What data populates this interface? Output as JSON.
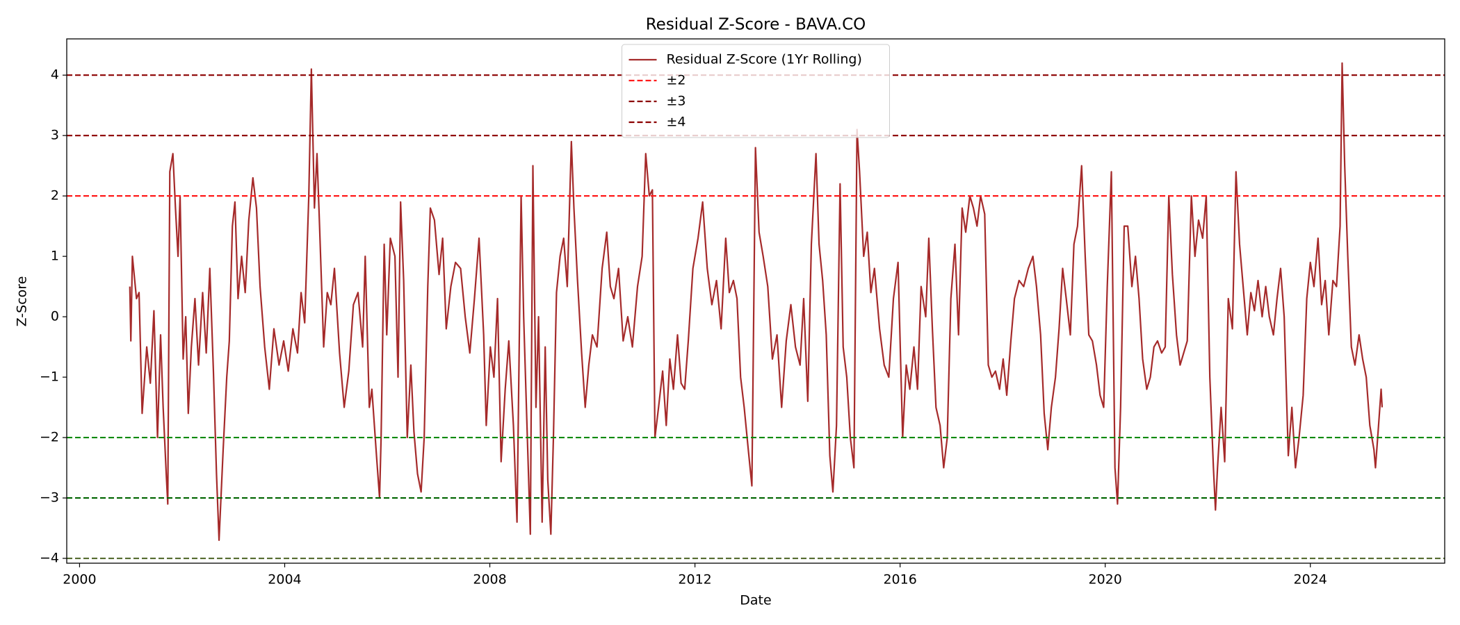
{
  "chart_data": {
    "type": "line",
    "title": "Residual Z-Score - BAVA.CO",
    "xlabel": "Date",
    "ylabel": "Z-Score",
    "xlim": [
      1999.75,
      2026.62
    ],
    "ylim": [
      -4.08,
      4.6
    ],
    "xticks": [
      2000,
      2004,
      2008,
      2012,
      2016,
      2020,
      2024
    ],
    "yticks": [
      {
        "value": -4,
        "label": "−4"
      },
      {
        "value": -3,
        "label": "−3"
      },
      {
        "value": -2,
        "label": "−2"
      },
      {
        "value": -1,
        "label": "−1"
      },
      0,
      1,
      2,
      3,
      4
    ],
    "legend_loc": "upper center",
    "grid": false,
    "reference_lines": [
      {
        "name": "±2",
        "levels": [
          2,
          -2
        ],
        "colors": [
          "#ff1a1a",
          "#0a8a0a"
        ]
      },
      {
        "name": "±3",
        "levels": [
          3,
          -3
        ],
        "colors": [
          "#8b0000",
          "#006400"
        ]
      },
      {
        "name": "±4",
        "levels": [
          4,
          -4
        ],
        "colors": [
          "#8b0000",
          "#556b2f"
        ]
      }
    ],
    "x": [
      2000.98,
      2001.0,
      2001.03,
      2001.11,
      2001.16,
      2001.22,
      2001.31,
      2001.38,
      2001.45,
      2001.52,
      2001.58,
      2001.63,
      2001.69,
      2001.72,
      2001.76,
      2001.82,
      2001.87,
      2001.92,
      2001.96,
      2002.02,
      2002.07,
      2002.12,
      2002.18,
      2002.25,
      2002.32,
      2002.4,
      2002.47,
      2002.54,
      2002.61,
      2002.67,
      2002.72,
      2002.8,
      2002.87,
      2002.92,
      2002.98,
      2003.03,
      2003.09,
      2003.16,
      2003.23,
      2003.3,
      2003.38,
      2003.45,
      2003.52,
      2003.61,
      2003.7,
      2003.79,
      2003.89,
      2003.98,
      2004.07,
      2004.16,
      2004.25,
      2004.32,
      2004.39,
      2004.47,
      2004.52,
      2004.58,
      2004.63,
      2004.68,
      2004.76,
      2004.83,
      2004.9,
      2004.97,
      2005.07,
      2005.16,
      2005.25,
      2005.34,
      2005.43,
      2005.52,
      2005.57,
      2005.65,
      2005.7,
      2005.79,
      2005.85,
      2005.88,
      2005.94,
      2005.99,
      2006.06,
      2006.15,
      2006.21,
      2006.26,
      2006.32,
      2006.39,
      2006.46,
      2006.52,
      2006.59,
      2006.66,
      2006.72,
      2006.79,
      2006.84,
      2006.92,
      2007.01,
      2007.08,
      2007.15,
      2007.24,
      2007.33,
      2007.43,
      2007.52,
      2007.61,
      2007.7,
      2007.79,
      2007.88,
      2007.93,
      2008.01,
      2008.08,
      2008.15,
      2008.22,
      2008.3,
      2008.37,
      2008.46,
      2008.53,
      2008.61,
      2008.66,
      2008.71,
      2008.79,
      2008.84,
      2008.9,
      2008.95,
      2009.02,
      2009.08,
      2009.13,
      2009.19,
      2009.24,
      2009.3,
      2009.37,
      2009.44,
      2009.51,
      2009.59,
      2009.64,
      2009.71,
      2009.79,
      2009.86,
      2009.93,
      2010.0,
      2010.09,
      2010.19,
      2010.28,
      2010.35,
      2010.42,
      2010.51,
      2010.6,
      2010.69,
      2010.78,
      2010.88,
      2010.97,
      2011.04,
      2011.11,
      2011.17,
      2011.22,
      2011.29,
      2011.37,
      2011.44,
      2011.51,
      2011.58,
      2011.66,
      2011.73,
      2011.8,
      2011.87,
      2011.96,
      2012.06,
      2012.15,
      2012.24,
      2012.33,
      2012.42,
      2012.51,
      2012.6,
      2012.67,
      2012.75,
      2012.82,
      2012.89,
      2012.96,
      2013.04,
      2013.11,
      2013.18,
      2013.25,
      2013.33,
      2013.42,
      2013.51,
      2013.6,
      2013.69,
      2013.78,
      2013.87,
      2013.96,
      2014.05,
      2014.12,
      2014.2,
      2014.27,
      2014.36,
      2014.42,
      2014.49,
      2014.56,
      2014.63,
      2014.69,
      2014.76,
      2014.83,
      2014.89,
      2014.96,
      2015.03,
      2015.1,
      2015.16,
      2015.21,
      2015.29,
      2015.36,
      2015.43,
      2015.5,
      2015.6,
      2015.69,
      2015.78,
      2015.87,
      2015.96,
      2016.05,
      2016.12,
      2016.19,
      2016.27,
      2016.34,
      2016.41,
      2016.5,
      2016.56,
      2016.63,
      2016.7,
      2016.78,
      2016.85,
      2016.92,
      2016.99,
      2017.07,
      2017.14,
      2017.21,
      2017.28,
      2017.36,
      2017.43,
      2017.5,
      2017.57,
      2017.65,
      2017.72,
      2017.79,
      2017.86,
      2017.94,
      2018.01,
      2018.08,
      2018.16,
      2018.23,
      2018.32,
      2018.41,
      2018.5,
      2018.59,
      2018.66,
      2018.74,
      2018.81,
      2018.88,
      2018.95,
      2019.03,
      2019.1,
      2019.17,
      2019.24,
      2019.32,
      2019.39,
      2019.46,
      2019.54,
      2019.61,
      2019.68,
      2019.75,
      2019.83,
      2019.9,
      2019.97,
      2020.04,
      2020.12,
      2020.19,
      2020.24,
      2020.3,
      2020.37,
      2020.44,
      2020.52,
      2020.59,
      2020.66,
      2020.73,
      2020.81,
      2020.88,
      2020.95,
      2021.02,
      2021.1,
      2021.17,
      2021.24,
      2021.31,
      2021.39,
      2021.46,
      2021.53,
      2021.6,
      2021.68,
      2021.75,
      2021.82,
      2021.9,
      2021.97,
      2022.04,
      2022.11,
      2022.15,
      2022.19,
      2022.26,
      2022.33,
      2022.4,
      2022.48,
      2022.55,
      2022.62,
      2022.69,
      2022.77,
      2022.84,
      2022.91,
      2022.98,
      2023.06,
      2023.13,
      2023.2,
      2023.28,
      2023.35,
      2023.42,
      2023.49,
      2023.57,
      2023.64,
      2023.71,
      2023.78,
      2023.86,
      2023.93,
      2024.0,
      2024.07,
      2024.15,
      2024.22,
      2024.29,
      2024.36,
      2024.44,
      2024.51,
      2024.58,
      2024.62,
      2024.67,
      2024.73,
      2024.8,
      2024.87,
      2024.95,
      2025.02,
      2025.09,
      2025.16,
      2025.24,
      2025.27,
      2025.33,
      2025.38,
      2025.4
    ],
    "series": [
      {
        "name": "Residual Z-Score (1Yr Rolling)",
        "color": "#a52a2a",
        "values": [
          0.5,
          -0.4,
          1.0,
          0.3,
          0.4,
          -1.6,
          -0.5,
          -1.1,
          0.1,
          -2.0,
          -0.3,
          -1.5,
          -2.6,
          -3.1,
          2.4,
          2.7,
          1.8,
          1.0,
          2.0,
          -0.7,
          0.0,
          -1.6,
          -0.5,
          0.3,
          -0.8,
          0.4,
          -0.6,
          0.8,
          -0.9,
          -2.6,
          -3.7,
          -2.2,
          -1.0,
          -0.4,
          1.5,
          1.9,
          0.3,
          1.0,
          0.4,
          1.6,
          2.3,
          1.8,
          0.5,
          -0.5,
          -1.2,
          -0.2,
          -0.8,
          -0.4,
          -0.9,
          -0.2,
          -0.6,
          0.4,
          -0.1,
          2.0,
          4.1,
          1.8,
          2.7,
          1.5,
          -0.5,
          0.4,
          0.2,
          0.8,
          -0.6,
          -1.5,
          -0.9,
          0.2,
          0.4,
          -0.5,
          1.0,
          -1.5,
          -1.2,
          -2.3,
          -3.0,
          -2.0,
          1.2,
          -0.3,
          1.3,
          1.0,
          -1.0,
          1.9,
          0.6,
          -2.0,
          -0.8,
          -1.9,
          -2.6,
          -2.9,
          -2.0,
          0.5,
          1.8,
          1.6,
          0.7,
          1.3,
          -0.2,
          0.5,
          0.9,
          0.8,
          0.0,
          -0.6,
          0.3,
          1.3,
          -0.3,
          -1.8,
          -0.5,
          -1.0,
          0.3,
          -2.4,
          -1.2,
          -0.4,
          -1.8,
          -3.4,
          2.0,
          0.0,
          -1.4,
          -3.6,
          2.5,
          -1.5,
          0.0,
          -3.4,
          -0.5,
          -2.7,
          -3.6,
          -2.0,
          0.4,
          1.0,
          1.3,
          0.5,
          2.9,
          1.8,
          0.6,
          -0.6,
          -1.5,
          -0.8,
          -0.3,
          -0.5,
          0.8,
          1.4,
          0.5,
          0.3,
          0.8,
          -0.4,
          0.0,
          -0.5,
          0.5,
          1.0,
          2.7,
          2.0,
          2.1,
          -2.0,
          -1.5,
          -0.9,
          -1.8,
          -0.7,
          -1.2,
          -0.3,
          -1.1,
          -1.2,
          -0.4,
          0.8,
          1.3,
          1.9,
          0.8,
          0.2,
          0.6,
          -0.2,
          1.3,
          0.4,
          0.6,
          0.3,
          -1.0,
          -1.5,
          -2.2,
          -2.8,
          2.8,
          1.4,
          1.0,
          0.5,
          -0.7,
          -0.3,
          -1.5,
          -0.4,
          0.2,
          -0.5,
          -0.8,
          0.3,
          -1.4,
          1.2,
          2.7,
          1.2,
          0.6,
          -0.3,
          -2.3,
          -2.9,
          -1.8,
          2.2,
          -0.5,
          -1.0,
          -2.0,
          -2.5,
          3.1,
          2.4,
          1.0,
          1.4,
          0.4,
          0.8,
          -0.2,
          -0.8,
          -1.0,
          0.3,
          0.9,
          -2.0,
          -0.8,
          -1.2,
          -0.5,
          -1.2,
          0.5,
          0.0,
          1.3,
          -0.2,
          -1.5,
          -1.8,
          -2.5,
          -2.0,
          0.3,
          1.2,
          -0.3,
          1.8,
          1.4,
          2.0,
          1.8,
          1.5,
          2.0,
          1.7,
          -0.8,
          -1.0,
          -0.9,
          -1.2,
          -0.7,
          -1.3,
          -0.4,
          0.3,
          0.6,
          0.5,
          0.8,
          1.0,
          0.5,
          -0.3,
          -1.6,
          -2.2,
          -1.5,
          -1.0,
          -0.2,
          0.8,
          0.3,
          -0.3,
          1.2,
          1.5,
          2.5,
          1.0,
          -0.3,
          -0.4,
          -0.8,
          -1.3,
          -1.5,
          0.5,
          2.4,
          -2.5,
          -3.1,
          -1.5,
          1.5,
          1.5,
          0.5,
          1.0,
          0.3,
          -0.7,
          -1.2,
          -1.0,
          -0.5,
          -0.4,
          -0.6,
          -0.5,
          2.0,
          0.7,
          -0.3,
          -0.8,
          -0.6,
          -0.4,
          2.0,
          1.0,
          1.6,
          1.3,
          2.0,
          -1.0,
          -2.5,
          -3.2,
          -2.5,
          -1.5,
          -2.4,
          0.3,
          -0.2,
          2.4,
          1.2,
          0.5,
          -0.3,
          0.4,
          0.1,
          0.6,
          0.0,
          0.5,
          0.0,
          -0.3,
          0.3,
          0.8,
          0.0,
          -2.3,
          -1.5,
          -2.5,
          -2.0,
          -1.3,
          0.3,
          0.9,
          0.5,
          1.3,
          0.2,
          0.6,
          -0.3,
          0.6,
          0.5,
          1.5,
          4.2,
          2.5,
          1.0,
          -0.5,
          -0.8,
          -0.3,
          -0.7,
          -1.0,
          -1.8,
          -2.2,
          -2.5,
          -1.8,
          -1.2,
          -1.5
        ]
      }
    ]
  }
}
